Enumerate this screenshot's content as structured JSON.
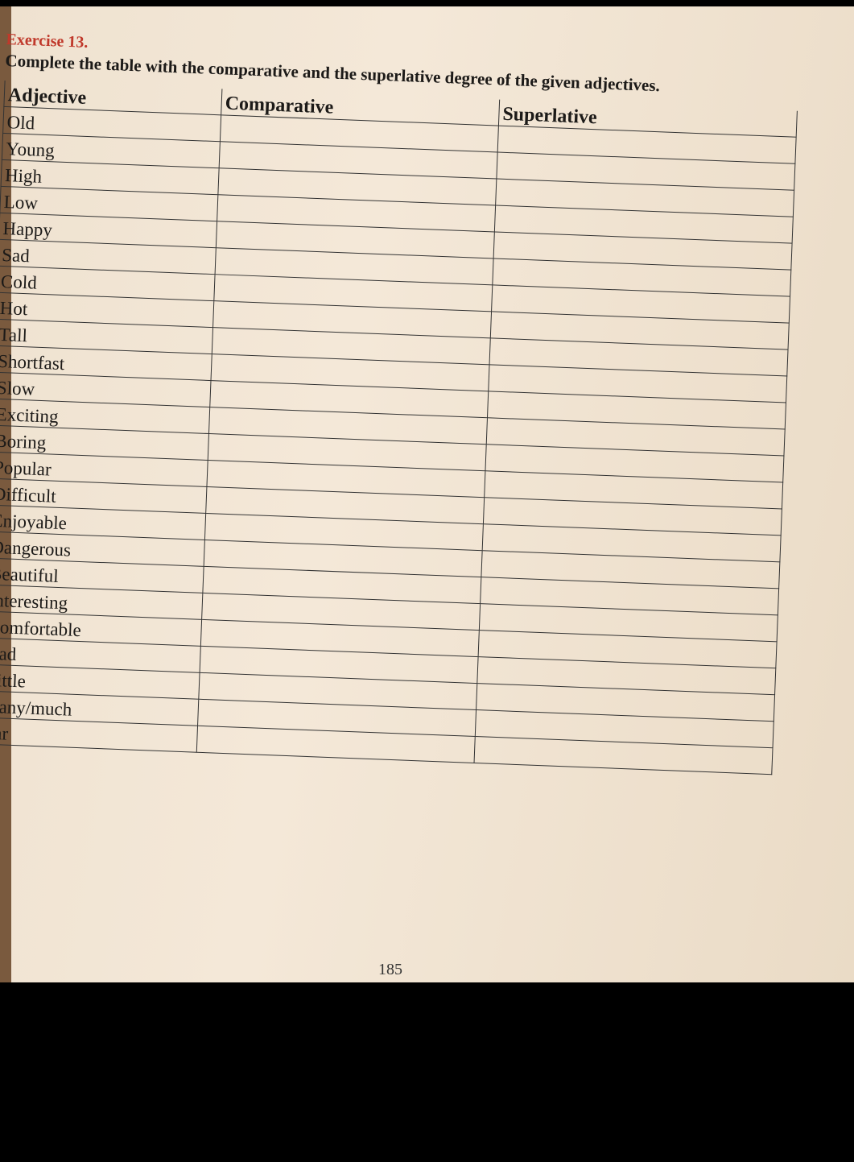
{
  "exercise": {
    "label": "Exercise 13.",
    "instruction": "Complete the table with the comparative and the superlative degree of the given adjectives."
  },
  "table": {
    "headers": [
      "Adjective",
      "Comparative",
      "Superlative"
    ],
    "rows": [
      "Old",
      "Young",
      "High",
      "Low",
      "Happy",
      "Sad",
      "Cold",
      "Hot",
      "Tall",
      "Shortfast",
      "Slow",
      "Exciting",
      "Boring",
      "Popular",
      "Difficult",
      "Enjoyable",
      "Dangerous",
      "Beautiful",
      "Interesting",
      "Comfortable",
      "Bad",
      "Little",
      "many/much",
      "Far"
    ]
  },
  "footer": {
    "page_number": "185"
  }
}
